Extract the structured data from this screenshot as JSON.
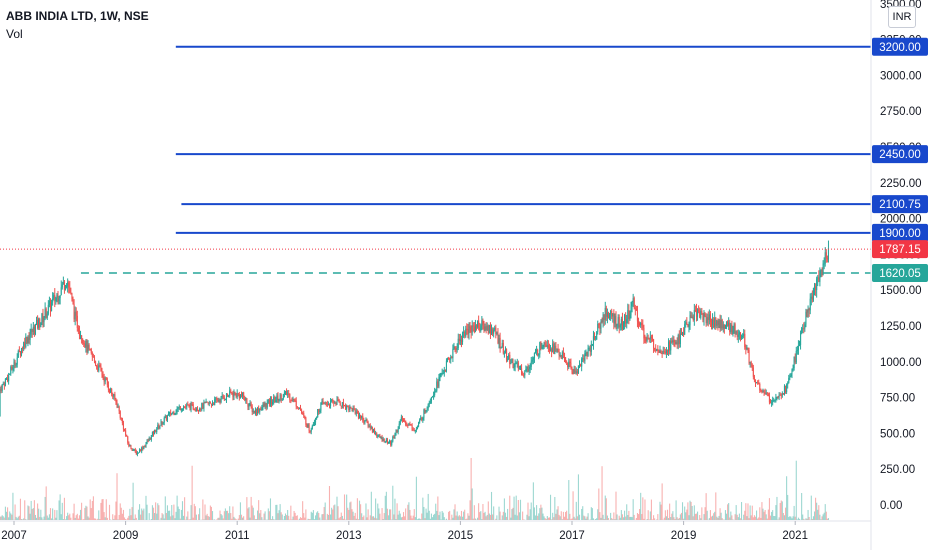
{
  "header": {
    "symbol_line": "ABB INDIA LTD, 1W, NSE",
    "indicator": "Vol"
  },
  "currency_button": "INR",
  "colors": {
    "up": "#26a69a",
    "down": "#ef5350",
    "level_line": "#1848cc",
    "support_line": "#26a69a",
    "current_price": "#f23645",
    "axis_text": "#131722"
  },
  "chart_data": {
    "type": "candlestick",
    "title": "ABB INDIA LTD, 1W, NSE",
    "x_tick_labels": [
      "2007",
      "2009",
      "2011",
      "2013",
      "2015",
      "2017",
      "2019",
      "2021"
    ],
    "y_tick_labels": [
      "0.00",
      "250.00",
      "500.00",
      "750.00",
      "1000.00",
      "1250.00",
      "1500.00",
      "1750.00",
      "2000.00",
      "2250.00",
      "2500.00",
      "2750.00",
      "3000.00",
      "3250.00",
      "3500.00"
    ],
    "ylim": [
      -50,
      3550
    ],
    "horizontal_levels": [
      {
        "value": 3200,
        "label": "3200.00",
        "style": "solid",
        "color": "#1848cc",
        "start": 2009.9
      },
      {
        "value": 2450,
        "label": "2450.00",
        "style": "solid",
        "color": "#1848cc",
        "start": 2009.9
      },
      {
        "value": 2100.75,
        "label": "2100.75",
        "style": "solid",
        "color": "#1848cc",
        "start": 2010.0
      },
      {
        "value": 1900,
        "label": "1900.00",
        "style": "solid",
        "color": "#1848cc",
        "start": 2009.9
      },
      {
        "value": 1620.05,
        "label": "1620.05",
        "style": "dashed",
        "color": "#26a69a",
        "start": 2008.2
      }
    ],
    "current_price": {
      "value": 1787.15,
      "label": "1787.15"
    },
    "price_path": [
      [
        2006.0,
        620
      ],
      [
        2006.3,
        700
      ],
      [
        2006.6,
        720
      ],
      [
        2006.9,
        900
      ],
      [
        2007.2,
        1150
      ],
      [
        2007.5,
        1300
      ],
      [
        2007.75,
        1450
      ],
      [
        2007.95,
        1580
      ],
      [
        2008.1,
        1300
      ],
      [
        2008.3,
        1100
      ],
      [
        2008.6,
        900
      ],
      [
        2008.85,
        700
      ],
      [
        2009.05,
        420
      ],
      [
        2009.2,
        360
      ],
      [
        2009.35,
        420
      ],
      [
        2009.55,
        530
      ],
      [
        2009.75,
        620
      ],
      [
        2010.0,
        690
      ],
      [
        2010.3,
        680
      ],
      [
        2010.6,
        720
      ],
      [
        2010.9,
        780
      ],
      [
        2011.1,
        760
      ],
      [
        2011.3,
        650
      ],
      [
        2011.6,
        720
      ],
      [
        2011.9,
        780
      ],
      [
        2012.1,
        690
      ],
      [
        2012.3,
        520
      ],
      [
        2012.5,
        700
      ],
      [
        2012.8,
        720
      ],
      [
        2013.1,
        660
      ],
      [
        2013.35,
        560
      ],
      [
        2013.55,
        470
      ],
      [
        2013.75,
        430
      ],
      [
        2013.95,
        600
      ],
      [
        2014.2,
        520
      ],
      [
        2014.5,
        780
      ],
      [
        2014.75,
        980
      ],
      [
        2015.05,
        1200
      ],
      [
        2015.3,
        1260
      ],
      [
        2015.6,
        1220
      ],
      [
        2015.85,
        1020
      ],
      [
        2016.15,
        920
      ],
      [
        2016.5,
        1150
      ],
      [
        2016.8,
        1050
      ],
      [
        2017.05,
        920
      ],
      [
        2017.35,
        1120
      ],
      [
        2017.6,
        1350
      ],
      [
        2017.9,
        1250
      ],
      [
        2018.1,
        1400
      ],
      [
        2018.3,
        1180
      ],
      [
        2018.6,
        1080
      ],
      [
        2018.9,
        1150
      ],
      [
        2019.2,
        1350
      ],
      [
        2019.45,
        1300
      ],
      [
        2019.75,
        1250
      ],
      [
        2020.05,
        1200
      ],
      [
        2020.3,
        850
      ],
      [
        2020.55,
        730
      ],
      [
        2020.85,
        820
      ],
      [
        2021.05,
        1100
      ],
      [
        2021.25,
        1400
      ],
      [
        2021.45,
        1620
      ],
      [
        2021.6,
        1787
      ]
    ],
    "volume_scale_max": 460
  }
}
